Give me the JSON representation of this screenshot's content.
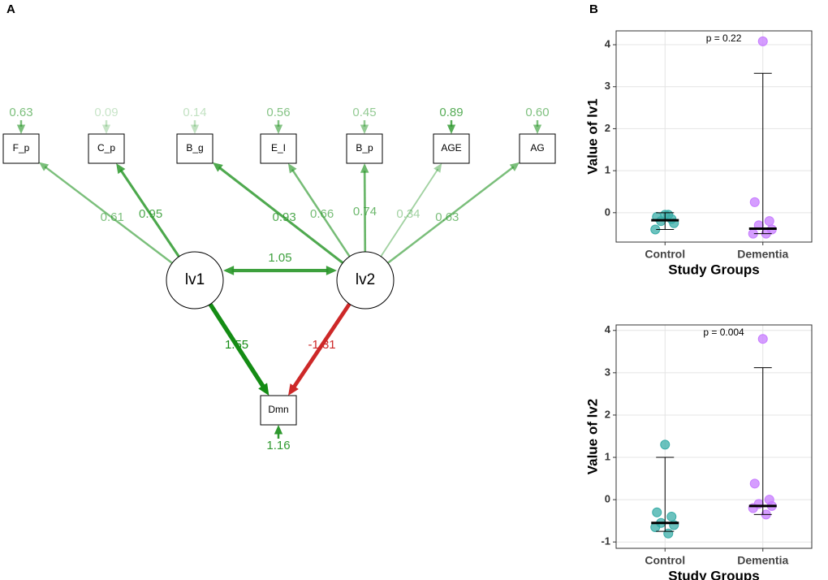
{
  "panel_a": {
    "panel_label": "A",
    "observed": [
      {
        "label": "F_p",
        "residual": "0.63",
        "loading": "0.61"
      },
      {
        "label": "C_p",
        "residual": "0.09",
        "loading": "0.95"
      },
      {
        "label": "B_g",
        "residual": "0.14",
        "loading": "0.93"
      },
      {
        "label": "E_I",
        "residual": "0.56",
        "loading": "0.66"
      },
      {
        "label": "B_p",
        "residual": "0.45",
        "loading": "0.74"
      },
      {
        "label": "AGE",
        "residual": "0.89",
        "loading": "0.34"
      },
      {
        "label": "AG",
        "residual": "0.60",
        "loading": "0.63"
      }
    ],
    "latent": [
      "lv1",
      "lv2"
    ],
    "covariance": "1.05",
    "outcome": {
      "label": "Dmn",
      "residual": "1.16",
      "paths": [
        "1.55",
        "-1.31"
      ]
    }
  },
  "panel_b": {
    "panel_label": "B"
  },
  "chart_data": [
    {
      "type": "strip",
      "title": "p = 0.22",
      "y_label": "Value of lv1",
      "x_label": "Study Groups",
      "categories": [
        "Control",
        "Dementia"
      ],
      "series": [
        {
          "name": "Control",
          "color": "#3aada8",
          "values": [
            -0.05,
            -0.1,
            -0.15,
            -0.2,
            -0.25,
            -0.4,
            -0.05
          ]
        },
        {
          "name": "Dementia",
          "color": "#c77cff",
          "values": [
            4.08,
            0.25,
            -0.2,
            -0.3,
            -0.4,
            -0.5,
            -0.5
          ]
        }
      ],
      "center": [
        -0.18,
        -0.38
      ],
      "lower": [
        -0.4,
        -0.5
      ],
      "upper": [
        0.0,
        3.32
      ],
      "ylim": [
        -0.7,
        4.33
      ],
      "yticks": [
        0,
        1,
        2,
        3,
        4
      ],
      "grid": true
    },
    {
      "type": "strip",
      "title": "p = 0.004",
      "y_label": "Value of lv2",
      "x_label": "Study Groups",
      "categories": [
        "Control",
        "Dementia"
      ],
      "series": [
        {
          "name": "Control",
          "color": "#3aada8",
          "values": [
            1.3,
            -0.3,
            -0.4,
            -0.55,
            -0.6,
            -0.65,
            -0.8
          ]
        },
        {
          "name": "Dementia",
          "color": "#c77cff",
          "values": [
            3.8,
            0.38,
            0.0,
            -0.1,
            -0.15,
            -0.2,
            -0.35
          ]
        }
      ],
      "center": [
        -0.55,
        -0.15
      ],
      "lower": [
        -0.75,
        -0.35
      ],
      "upper": [
        1.0,
        3.12
      ],
      "ylim": [
        -1.15,
        4.13
      ],
      "yticks": [
        -1,
        0,
        1,
        2,
        3,
        4
      ],
      "grid": true
    }
  ]
}
